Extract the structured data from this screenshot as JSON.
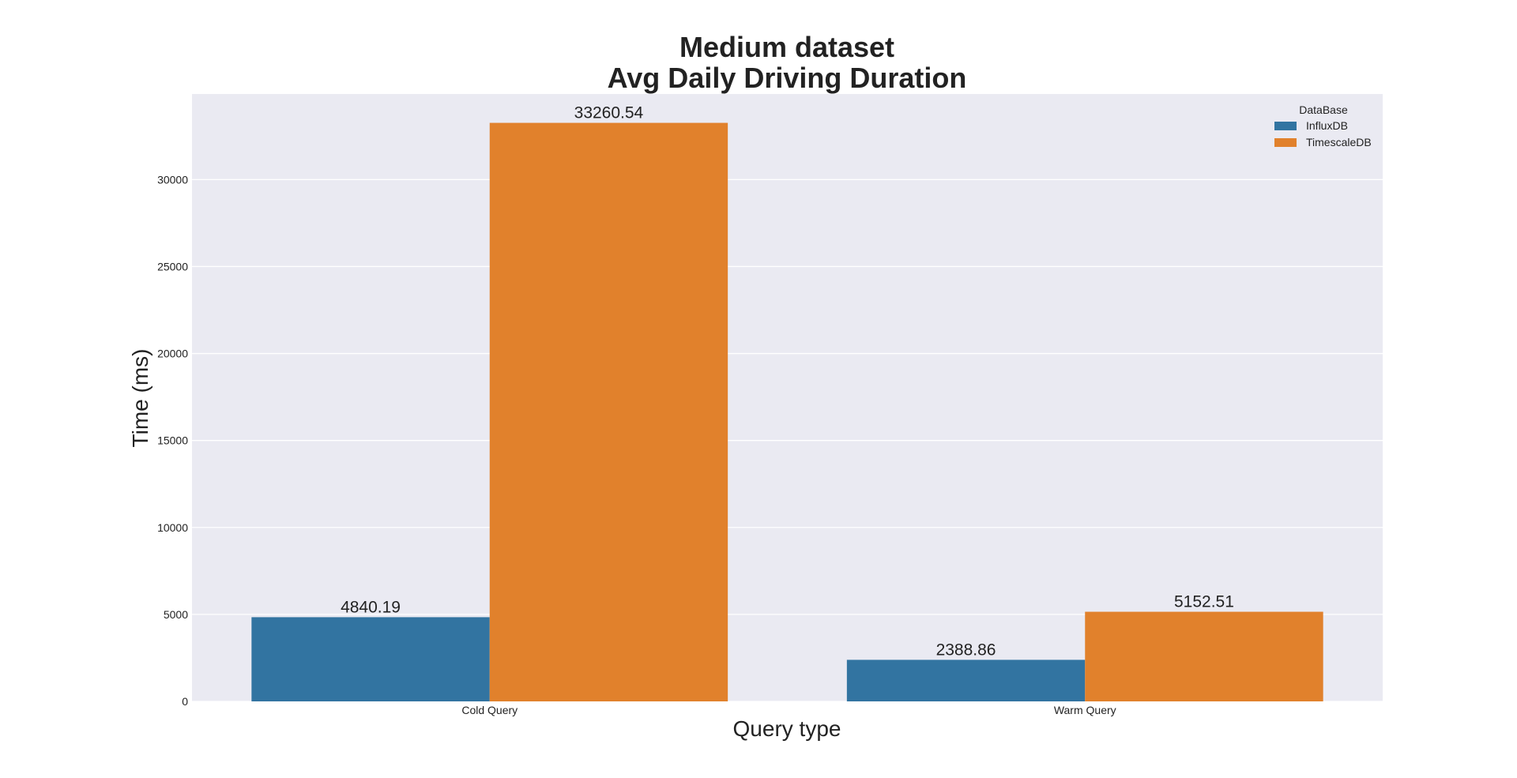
{
  "chart_data": {
    "type": "bar",
    "title": "Medium dataset",
    "subtitle": "Avg Daily Driving Duration",
    "xlabel": "Query type",
    "ylabel": "Time (ms)",
    "categories": [
      "Cold Query",
      "Warm Query"
    ],
    "series": [
      {
        "name": "InfluxDB",
        "values": [
          4840.19,
          2388.86
        ],
        "color": "#3274a1",
        "labels": [
          "4840.19",
          "2388.86"
        ]
      },
      {
        "name": "TimescaleDB",
        "values": [
          33260.54,
          5152.51
        ],
        "color": "#e1812c",
        "labels": [
          "33260.54",
          "5152.51"
        ]
      }
    ],
    "ylim": [
      0,
      34920
    ],
    "yticks": [
      0,
      5000,
      10000,
      15000,
      20000,
      25000,
      30000
    ],
    "ytick_labels": [
      "0",
      "5000",
      "10000",
      "15000",
      "20000",
      "25000",
      "30000"
    ],
    "grid": true,
    "legend": {
      "title": "DataBase",
      "placement": "top-right"
    },
    "background": "#eaeaf2"
  }
}
